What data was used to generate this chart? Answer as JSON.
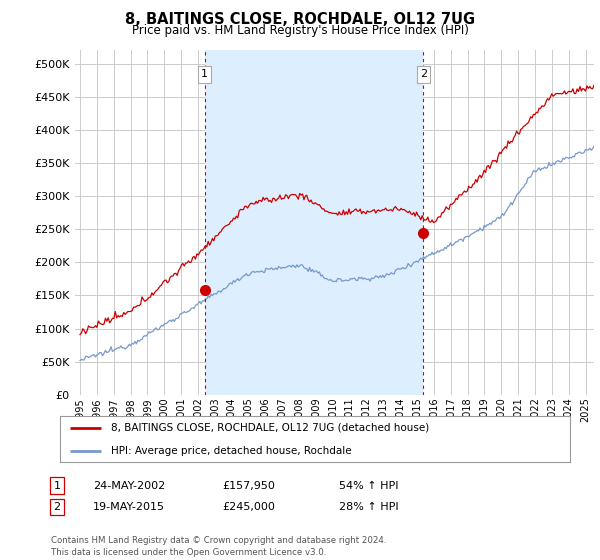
{
  "title": "8, BAITINGS CLOSE, ROCHDALE, OL12 7UG",
  "subtitle": "Price paid vs. HM Land Registry's House Price Index (HPI)",
  "ytick_values": [
    0,
    50000,
    100000,
    150000,
    200000,
    250000,
    300000,
    350000,
    400000,
    450000,
    500000
  ],
  "ylim": [
    0,
    520000
  ],
  "xlim_start": 1994.7,
  "xlim_end": 2025.5,
  "xtick_years": [
    1995,
    1996,
    1997,
    1998,
    1999,
    2000,
    2001,
    2002,
    2003,
    2004,
    2005,
    2006,
    2007,
    2008,
    2009,
    2010,
    2011,
    2012,
    2013,
    2014,
    2015,
    2016,
    2017,
    2018,
    2019,
    2020,
    2021,
    2022,
    2023,
    2024,
    2025
  ],
  "sale1_x": 2002.39,
  "sale1_y": 157950,
  "sale1_label": "1",
  "sale1_date": "24-MAY-2002",
  "sale1_price": "£157,950",
  "sale1_hpi": "54% ↑ HPI",
  "sale2_x": 2015.38,
  "sale2_y": 245000,
  "sale2_label": "2",
  "sale2_date": "19-MAY-2015",
  "sale2_price": "£245,000",
  "sale2_hpi": "28% ↑ HPI",
  "vline1_x": 2002.39,
  "vline2_x": 2015.38,
  "legend_property": "8, BAITINGS CLOSE, ROCHDALE, OL12 7UG (detached house)",
  "legend_hpi": "HPI: Average price, detached house, Rochdale",
  "footer": "Contains HM Land Registry data © Crown copyright and database right 2024.\nThis data is licensed under the Open Government Licence v3.0.",
  "red_color": "#cc0000",
  "blue_color": "#7799cc",
  "shade_color": "#ddeeff",
  "vline_color": "#cc0000",
  "bg_color": "#ffffff",
  "grid_color": "#cccccc"
}
